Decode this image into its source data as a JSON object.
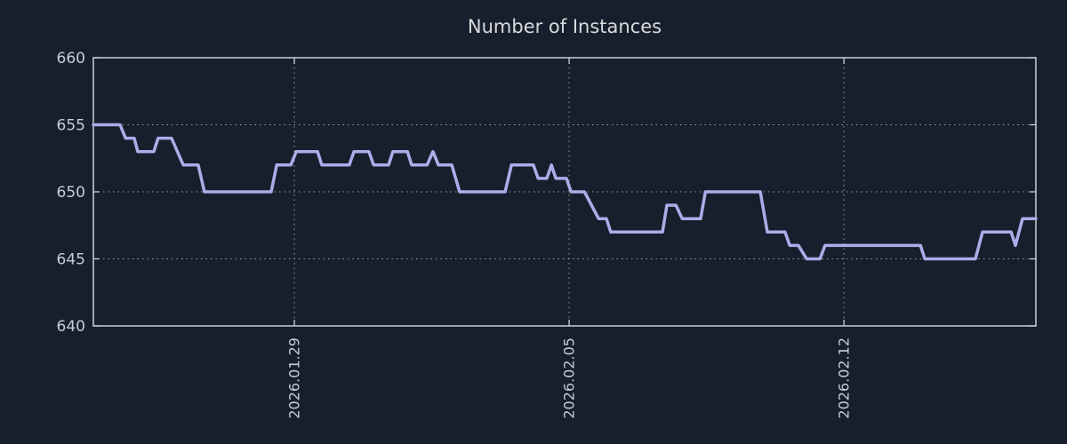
{
  "chart_data": {
    "type": "line",
    "title": "Number of Instances",
    "xlabel": "",
    "ylabel": "",
    "xlim": [
      -5.12,
      18.89
    ],
    "ylim": [
      640,
      660
    ],
    "grid": true,
    "legend": "none",
    "x_ticks": [
      {
        "pos": 0,
        "label": "2026.01.29"
      },
      {
        "pos": 7,
        "label": "2026.02.05"
      },
      {
        "pos": 14,
        "label": "2026.02.12"
      }
    ],
    "y_ticks": [
      640,
      645,
      650,
      655,
      660
    ],
    "colors": {
      "background": "#171f2c",
      "line": "#a9aee9",
      "frame": "#cdd0d4",
      "grid": "#c6cacd",
      "tick_labels": "#c8ccd3",
      "title": "#d8dadd"
    },
    "series": [
      {
        "name": "Number of Instances",
        "points": [
          [
            -5.12,
            655
          ],
          [
            -4.44,
            655
          ],
          [
            -4.3,
            654
          ],
          [
            -4.08,
            654
          ],
          [
            -3.99,
            653
          ],
          [
            -3.58,
            653
          ],
          [
            -3.47,
            654
          ],
          [
            -3.13,
            654
          ],
          [
            -2.83,
            652
          ],
          [
            -2.45,
            652
          ],
          [
            -2.29,
            650
          ],
          [
            -0.59,
            650
          ],
          [
            -0.45,
            652
          ],
          [
            -0.09,
            652
          ],
          [
            0.05,
            653
          ],
          [
            0.59,
            653
          ],
          [
            0.7,
            652
          ],
          [
            1.4,
            652
          ],
          [
            1.52,
            653
          ],
          [
            1.9,
            653
          ],
          [
            2.02,
            652
          ],
          [
            2.4,
            652
          ],
          [
            2.51,
            653
          ],
          [
            2.88,
            653
          ],
          [
            2.99,
            652
          ],
          [
            3.38,
            652
          ],
          [
            3.53,
            653
          ],
          [
            3.67,
            652
          ],
          [
            4.01,
            652
          ],
          [
            4.21,
            650
          ],
          [
            5.37,
            650
          ],
          [
            5.53,
            652
          ],
          [
            6.09,
            652
          ],
          [
            6.21,
            651
          ],
          [
            6.43,
            651
          ],
          [
            6.55,
            652
          ],
          [
            6.66,
            651
          ],
          [
            6.93,
            651
          ],
          [
            7.05,
            650
          ],
          [
            7.39,
            650
          ],
          [
            7.75,
            648
          ],
          [
            7.95,
            648
          ],
          [
            8.06,
            647
          ],
          [
            9.38,
            647
          ],
          [
            9.49,
            649
          ],
          [
            9.72,
            649
          ],
          [
            9.88,
            648
          ],
          [
            10.35,
            648
          ],
          [
            10.47,
            650
          ],
          [
            11.87,
            650
          ],
          [
            12.05,
            647
          ],
          [
            12.5,
            647
          ],
          [
            12.62,
            646
          ],
          [
            12.84,
            646
          ],
          [
            13.05,
            645
          ],
          [
            13.39,
            645
          ],
          [
            13.52,
            646
          ],
          [
            15.95,
            646
          ],
          [
            16.06,
            645
          ],
          [
            17.35,
            645
          ],
          [
            17.53,
            647
          ],
          [
            18.26,
            647
          ],
          [
            18.37,
            646
          ],
          [
            18.55,
            648
          ],
          [
            18.89,
            648
          ]
        ]
      }
    ]
  }
}
